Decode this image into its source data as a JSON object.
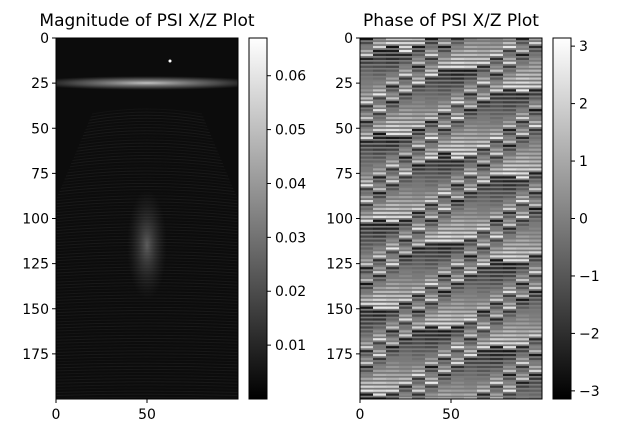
{
  "chart_data": [
    {
      "type": "heatmap",
      "title": "Magnitude of PSI X/Z Plot",
      "xlabel": "",
      "ylabel": "",
      "grid": false,
      "colormap": "gray",
      "xlim": [
        0,
        100
      ],
      "ylim": [
        200,
        0
      ],
      "x_ticks": [
        0,
        50
      ],
      "y_ticks": [
        0,
        25,
        50,
        75,
        100,
        125,
        150,
        175
      ],
      "colorbar": {
        "min": 0.0,
        "max": 0.067,
        "ticks": [
          0.01,
          0.02,
          0.03,
          0.04,
          0.05,
          0.06
        ],
        "tick_labels": [
          "0.01",
          "0.02",
          "0.03",
          "0.04",
          "0.05",
          "0.06"
        ]
      },
      "features": {
        "bright_band_row": 25,
        "bright_spot": {
          "x": 63,
          "y": 13
        },
        "bright_region_center": {
          "x": 50,
          "y": 115
        }
      }
    },
    {
      "type": "heatmap",
      "title": "Phase of PSI X/Z Plot",
      "xlabel": "",
      "ylabel": "",
      "grid": false,
      "colormap": "gray",
      "xlim": [
        0,
        100
      ],
      "ylim": [
        200,
        0
      ],
      "x_ticks": [
        0,
        50
      ],
      "y_ticks": [
        0,
        25,
        50,
        75,
        100,
        125,
        150,
        175
      ],
      "colorbar": {
        "min": -3.14159,
        "max": 3.14159,
        "ticks": [
          -3,
          -2,
          -1,
          0,
          1,
          2,
          3
        ],
        "tick_labels": [
          "−3",
          "−2",
          "−1",
          "0",
          "1",
          "2",
          "3"
        ]
      }
    }
  ]
}
